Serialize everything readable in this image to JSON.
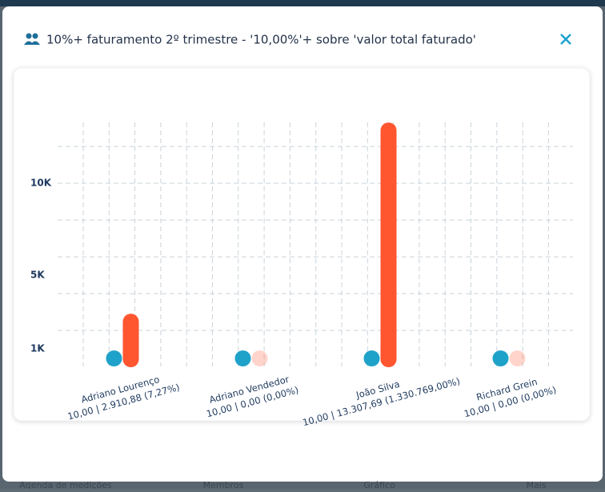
{
  "background_nav": [
    "Agenda de medições",
    "Membros",
    "Gráfico",
    "Mais"
  ],
  "chart_data": {
    "type": "bar",
    "title": "10%+ faturamento 2º trimestre - '10,00%'+ sobre 'valor total faturado'",
    "categories": [
      "Adriano Lourenço",
      "Adriano Vendedor",
      "João Silva",
      "Richard Grein"
    ],
    "category_details": [
      "10,00 | 2.910,88 (7,27%)",
      "10,00 | 0,00 (0,00%)",
      "10,00 | 13.307,69 (1.330.769,00%)",
      "10,00 | 0,00 (0,00%)"
    ],
    "series": [
      {
        "color": "#1fa2c9",
        "values": [
          10,
          10,
          10,
          10
        ]
      },
      {
        "color": "#ff5630",
        "values": [
          2910.88,
          0,
          13307.69,
          0
        ]
      }
    ],
    "ylim": [
      0,
      13400
    ],
    "yticks": [
      {
        "value": 1000,
        "label": "1K"
      },
      {
        "value": 5000,
        "label": "5K"
      },
      {
        "value": 10000,
        "label": "10K"
      }
    ],
    "gridlines": [
      2000,
      4000,
      6000,
      8000,
      10000,
      12000
    ],
    "grid": true
  }
}
